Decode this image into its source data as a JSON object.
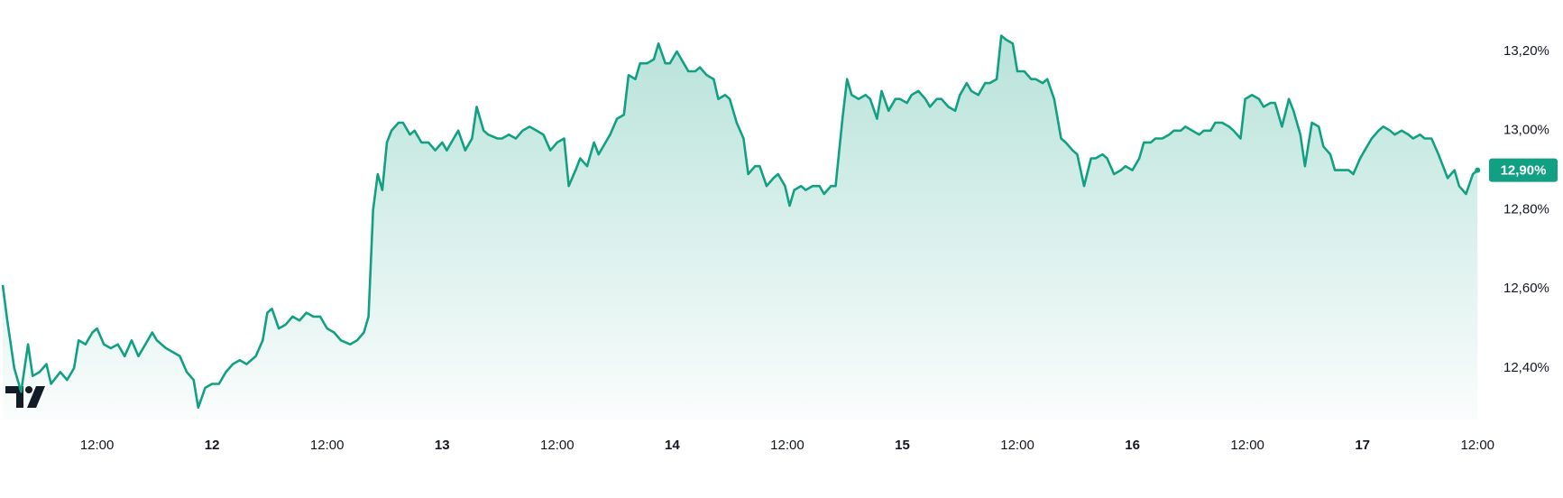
{
  "chart_data": {
    "type": "area",
    "x": [
      11.09,
      11.11,
      11.14,
      11.17,
      11.2,
      11.22,
      11.25,
      11.28,
      11.3,
      11.34,
      11.37,
      11.4,
      11.42,
      11.45,
      11.48,
      11.5,
      11.53,
      11.56,
      11.59,
      11.62,
      11.65,
      11.68,
      11.71,
      11.74,
      11.76,
      11.8,
      11.83,
      11.86,
      11.89,
      11.92,
      11.94,
      11.97,
      12.0,
      12.03,
      12.06,
      12.09,
      12.12,
      12.15,
      12.19,
      12.22,
      12.24,
      12.26,
      12.29,
      12.32,
      12.35,
      12.38,
      12.41,
      12.44,
      12.47,
      12.5,
      12.53,
      12.56,
      12.6,
      12.63,
      12.66,
      12.68,
      12.7,
      12.72,
      12.74,
      12.76,
      12.78,
      12.81,
      12.83,
      12.86,
      12.88,
      12.91,
      12.94,
      12.97,
      13.0,
      13.02,
      13.05,
      13.07,
      13.1,
      13.13,
      13.15,
      13.18,
      13.2,
      13.24,
      13.26,
      13.29,
      13.32,
      13.35,
      13.38,
      13.41,
      13.44,
      13.47,
      13.5,
      13.53,
      13.55,
      13.58,
      13.6,
      13.63,
      13.66,
      13.68,
      13.71,
      13.73,
      13.76,
      13.79,
      13.81,
      13.84,
      13.86,
      13.89,
      13.92,
      13.94,
      13.97,
      13.99,
      14.02,
      14.05,
      14.07,
      14.1,
      14.12,
      14.15,
      14.18,
      14.2,
      14.23,
      14.25,
      14.28,
      14.31,
      14.33,
      14.36,
      14.38,
      14.41,
      14.44,
      14.46,
      14.49,
      14.51,
      14.53,
      14.56,
      14.58,
      14.61,
      14.64,
      14.66,
      14.69,
      14.71,
      14.74,
      14.76,
      14.78,
      14.81,
      14.84,
      14.86,
      14.89,
      14.91,
      14.94,
      14.97,
      14.99,
      15.02,
      15.04,
      15.07,
      15.1,
      15.12,
      15.15,
      15.17,
      15.2,
      15.23,
      15.25,
      15.28,
      15.3,
      15.33,
      15.36,
      15.38,
      15.41,
      15.43,
      15.45,
      15.48,
      15.5,
      15.53,
      15.56,
      15.58,
      15.61,
      15.63,
      15.66,
      15.69,
      15.71,
      15.74,
      15.76,
      15.79,
      15.82,
      15.84,
      15.87,
      15.89,
      15.92,
      15.95,
      15.97,
      16.0,
      16.03,
      16.05,
      16.08,
      16.1,
      16.13,
      16.16,
      16.18,
      16.21,
      16.23,
      16.26,
      16.29,
      16.31,
      16.34,
      16.36,
      16.39,
      16.42,
      16.44,
      16.47,
      16.49,
      16.52,
      16.55,
      16.57,
      16.6,
      16.62,
      16.65,
      16.68,
      16.7,
      16.73,
      16.75,
      16.78,
      16.81,
      16.83,
      16.86,
      16.88,
      16.91,
      16.94,
      16.96,
      16.99,
      17.01,
      17.04,
      17.07,
      17.09,
      17.12,
      17.14,
      17.17,
      17.2,
      17.22,
      17.25,
      17.27,
      17.3,
      17.33,
      17.35,
      17.37,
      17.4,
      17.42,
      17.45,
      17.48,
      17.5
    ],
    "values": [
      12.61,
      12.52,
      12.4,
      12.34,
      12.46,
      12.38,
      12.39,
      12.41,
      12.36,
      12.39,
      12.37,
      12.4,
      12.47,
      12.46,
      12.49,
      12.5,
      12.46,
      12.45,
      12.46,
      12.43,
      12.47,
      12.43,
      12.46,
      12.49,
      12.47,
      12.45,
      12.44,
      12.43,
      12.39,
      12.37,
      12.3,
      12.35,
      12.36,
      12.36,
      12.39,
      12.41,
      12.42,
      12.41,
      12.43,
      12.47,
      12.54,
      12.55,
      12.5,
      12.51,
      12.53,
      12.52,
      12.54,
      12.53,
      12.53,
      12.5,
      12.49,
      12.47,
      12.46,
      12.47,
      12.49,
      12.53,
      12.8,
      12.89,
      12.85,
      12.97,
      13.0,
      13.02,
      13.02,
      12.99,
      13.0,
      12.97,
      12.97,
      12.95,
      12.97,
      12.95,
      12.98,
      13.0,
      12.95,
      12.98,
      13.06,
      13.0,
      12.99,
      12.98,
      12.98,
      12.99,
      12.98,
      13.0,
      13.01,
      13.0,
      12.99,
      12.95,
      12.97,
      12.98,
      12.86,
      12.9,
      12.93,
      12.91,
      12.97,
      12.94,
      12.97,
      12.99,
      13.03,
      13.04,
      13.14,
      13.13,
      13.17,
      13.17,
      13.18,
      13.22,
      13.17,
      13.17,
      13.2,
      13.17,
      13.15,
      13.15,
      13.16,
      13.14,
      13.13,
      13.08,
      13.09,
      13.08,
      13.02,
      12.98,
      12.89,
      12.91,
      12.91,
      12.86,
      12.88,
      12.89,
      12.86,
      12.81,
      12.85,
      12.86,
      12.85,
      12.86,
      12.86,
      12.84,
      12.86,
      12.86,
      13.03,
      13.13,
      13.09,
      13.08,
      13.09,
      13.08,
      13.03,
      13.1,
      13.05,
      13.08,
      13.08,
      13.07,
      13.09,
      13.1,
      13.08,
      13.06,
      13.08,
      13.08,
      13.06,
      13.05,
      13.09,
      13.12,
      13.1,
      13.09,
      13.12,
      13.12,
      13.13,
      13.24,
      13.23,
      13.22,
      13.15,
      13.15,
      13.13,
      13.13,
      13.12,
      13.13,
      13.08,
      12.98,
      12.97,
      12.95,
      12.94,
      12.86,
      12.93,
      12.93,
      12.94,
      12.93,
      12.89,
      12.9,
      12.91,
      12.9,
      12.93,
      12.97,
      12.97,
      12.98,
      12.98,
      12.99,
      13.0,
      13.0,
      13.01,
      13.0,
      12.99,
      13.0,
      13.0,
      13.02,
      13.02,
      13.01,
      13.0,
      12.98,
      13.08,
      13.09,
      13.08,
      13.06,
      13.07,
      13.07,
      13.01,
      13.08,
      13.05,
      12.99,
      12.91,
      13.02,
      13.01,
      12.96,
      12.94,
      12.9,
      12.9,
      12.9,
      12.89,
      12.93,
      12.95,
      12.98,
      13.0,
      13.01,
      13.0,
      12.99,
      13.0,
      12.99,
      12.98,
      12.99,
      12.98,
      12.98,
      12.94,
      12.91,
      12.88,
      12.9,
      12.86,
      12.84,
      12.89,
      12.9
    ],
    "last_value_label": "12,90%",
    "color": "#12a083",
    "xlim": [
      11.09,
      17.55
    ],
    "xticks": [
      {
        "value": 11.5,
        "label": "12:00"
      },
      12,
      {
        "value": 12.5,
        "label": "12:00"
      },
      13,
      {
        "value": 13.5,
        "label": "12:00"
      },
      14,
      {
        "value": 14.5,
        "label": "12:00"
      },
      15,
      {
        "value": 15.5,
        "label": "12:00"
      },
      16,
      {
        "value": 16.5,
        "label": "12:00"
      },
      17,
      {
        "value": 17.5,
        "label": "12:00"
      }
    ],
    "ylim": [
      12.27,
      13.33
    ],
    "yticks": [
      {
        "value": 12.4,
        "label": "12,40%"
      },
      {
        "value": 12.6,
        "label": "12,60%"
      },
      {
        "value": 12.8,
        "label": "12,80%"
      },
      {
        "value": 13.0,
        "label": "13,00%"
      },
      {
        "value": 13.2,
        "label": "13,20%"
      }
    ],
    "grid": false
  }
}
